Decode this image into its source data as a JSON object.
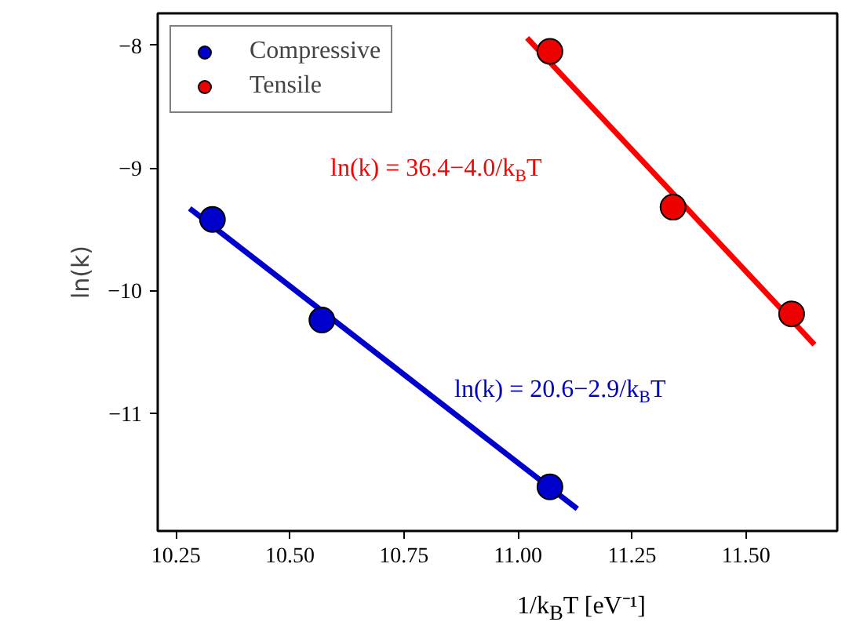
{
  "chart_data": {
    "type": "scatter",
    "xlabel": "1/k$_{B}$T [eV⁻¹]",
    "ylabel": "ln(k)",
    "xlim": [
      10.21,
      11.7
    ],
    "ylim": [
      -11.96,
      -7.74
    ],
    "xticks": [
      {
        "value": 10.25,
        "label": "10.25"
      },
      {
        "value": 10.5,
        "label": "10.50"
      },
      {
        "value": 10.75,
        "label": "10.75"
      },
      {
        "value": 11.0,
        "label": "11.00"
      },
      {
        "value": 11.25,
        "label": "11.25"
      },
      {
        "value": 11.5,
        "label": "11.50"
      }
    ],
    "yticks": [
      -8,
      -9,
      -10,
      -11
    ],
    "legend": "top left",
    "grid": false,
    "series": [
      {
        "name": "Compressive",
        "color": "#0000cc",
        "x": [
          10.33,
          10.57,
          11.07
        ],
        "values": [
          -9.42,
          -10.24,
          -11.6
        ]
      },
      {
        "name": "Tensile",
        "color": "#ee0000",
        "x": [
          11.07,
          11.34,
          11.6
        ],
        "values": [
          -8.05,
          -9.32,
          -10.19
        ]
      },
      {
        "type": "line",
        "color": "#0000cc",
        "x": [
          10.28,
          11.13
        ],
        "values": [
          -9.33,
          -11.78
        ]
      },
      {
        "type": "line",
        "color": "#ff0000",
        "x": [
          11.02,
          11.65
        ],
        "values": [
          -7.94,
          -10.44
        ]
      }
    ],
    "annotations": [
      "ln(k) = 36.4−4.0/k$_{B}$T",
      "ln(k) = 20.6−2.9/k$_{B}$T"
    ]
  }
}
